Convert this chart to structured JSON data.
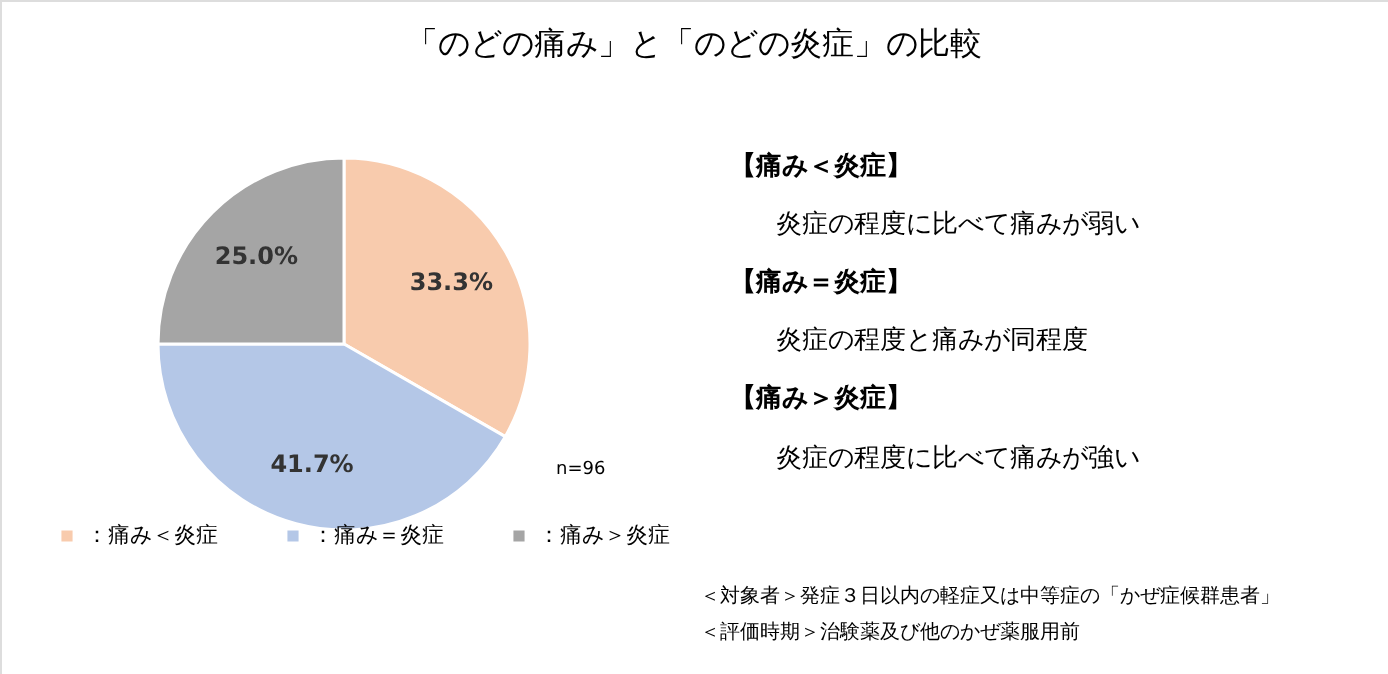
{
  "chart_data": {
    "type": "pie",
    "title": "「のどの痛み」と「のどの炎症」の比較",
    "categories": [
      "：痛み＜炎症",
      "：痛み＝炎症",
      "：痛み＞炎症"
    ],
    "values": [
      33.3,
      41.7,
      25.0
    ],
    "colors": [
      "#f8cbad",
      "#b4c7e7",
      "#a5a5a5"
    ],
    "value_labels": [
      "33.3%",
      "41.7%",
      "25.0%"
    ],
    "legend": "bottom",
    "annotations": [
      "【痛み＜炎症】",
      "炎症の程度に比べて痛みが弱い",
      "【痛み＝炎症】",
      "炎症の程度と痛みが同程度",
      "【痛み＞炎症】",
      "炎症の程度に比べて痛みが強い",
      "n=96",
      "＜対象者＞発症３日以内の軽症又は中等症の「かぜ症候群患者」",
      "＜評価時期＞治験薬及び他のかぜ薬服用前"
    ]
  }
}
